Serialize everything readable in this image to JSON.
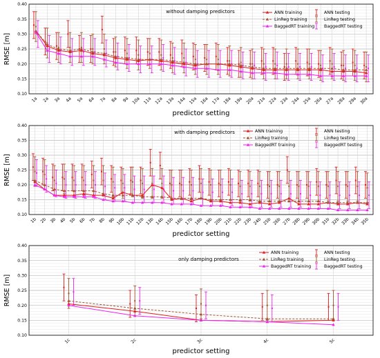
{
  "chart_data": [
    {
      "type": "line",
      "title": "without damping predictors",
      "xlabel": "predictor setting",
      "ylabel": "RMSE [m]",
      "ylim": [
        0.1,
        0.4
      ],
      "yticks": [
        "0.10",
        "0.15",
        "0.20",
        "0.25",
        "0.30",
        "0.35",
        "0.40"
      ],
      "grid": true,
      "legend_position": "top-right",
      "categories": [
        "1a",
        "2a",
        "3a",
        "4a",
        "5a",
        "6a",
        "7a",
        "8a",
        "9a",
        "10a",
        "11a",
        "12a",
        "13a",
        "14a",
        "15a",
        "16a",
        "17a",
        "18a",
        "19a",
        "20a",
        "21a",
        "22a",
        "23a",
        "24a",
        "25a",
        "26a",
        "27a",
        "28a",
        "29a",
        "30a"
      ],
      "series": [
        {
          "name": "ANN training",
          "color": "#e31a1c",
          "style": "solid",
          "marker": "triangle",
          "values": [
            0.31,
            0.26,
            0.245,
            0.24,
            0.245,
            0.235,
            0.23,
            0.22,
            0.215,
            0.21,
            0.215,
            0.21,
            0.205,
            0.2,
            0.195,
            0.2,
            0.2,
            0.195,
            0.19,
            0.185,
            0.18,
            0.18,
            0.18,
            0.18,
            0.18,
            0.18,
            0.175,
            0.175,
            0.175,
            0.17
          ]
        },
        {
          "name": "LinReg training",
          "color": "#a0522d",
          "style": "dashed",
          "marker": "triangle",
          "values": [
            0.31,
            0.265,
            0.25,
            0.245,
            0.25,
            0.24,
            0.235,
            0.225,
            0.22,
            0.215,
            0.215,
            0.215,
            0.21,
            0.205,
            0.2,
            0.2,
            0.2,
            0.2,
            0.195,
            0.19,
            0.185,
            0.185,
            0.185,
            0.185,
            0.185,
            0.185,
            0.185,
            0.18,
            0.18,
            0.18
          ]
        },
        {
          "name": "BaggedRT training",
          "color": "#ee22ee",
          "style": "solid",
          "marker": "triangle",
          "values": [
            0.305,
            0.245,
            0.235,
            0.225,
            0.225,
            0.225,
            0.215,
            0.205,
            0.2,
            0.2,
            0.2,
            0.2,
            0.195,
            0.19,
            0.185,
            0.185,
            0.18,
            0.18,
            0.175,
            0.17,
            0.17,
            0.17,
            0.165,
            0.165,
            0.165,
            0.16,
            0.16,
            0.16,
            0.16,
            0.16
          ]
        },
        {
          "name": "ANN testing",
          "color": "#e31a1c",
          "type": "errorbar",
          "values": [
            0.33,
            0.275,
            0.26,
            0.3,
            0.25,
            0.25,
            0.315,
            0.24,
            0.245,
            0.245,
            0.24,
            0.24,
            0.23,
            0.235,
            0.225,
            0.22,
            0.225,
            0.21,
            0.2,
            0.2,
            0.21,
            0.21,
            0.19,
            0.21,
            0.205,
            0.2,
            0.21,
            0.195,
            0.205,
            0.195
          ]
        },
        {
          "name": "LinReg testing",
          "color": "#a0522d",
          "type": "errorbar",
          "values": [
            0.325,
            0.27,
            0.255,
            0.255,
            0.255,
            0.25,
            0.25,
            0.24,
            0.235,
            0.23,
            0.235,
            0.23,
            0.22,
            0.22,
            0.215,
            0.215,
            0.215,
            0.21,
            0.205,
            0.2,
            0.2,
            0.2,
            0.2,
            0.2,
            0.2,
            0.195,
            0.2,
            0.195,
            0.195,
            0.19
          ]
        },
        {
          "name": "BaggedRT testing",
          "color": "#ee22ee",
          "type": "errorbar",
          "values": [
            0.3,
            0.25,
            0.245,
            0.24,
            0.24,
            0.24,
            0.235,
            0.225,
            0.22,
            0.215,
            0.215,
            0.22,
            0.21,
            0.205,
            0.2,
            0.2,
            0.2,
            0.2,
            0.195,
            0.195,
            0.19,
            0.195,
            0.19,
            0.19,
            0.19,
            0.185,
            0.19,
            0.185,
            0.185,
            0.185
          ]
        }
      ]
    },
    {
      "type": "line",
      "title": "with damping predictors",
      "xlabel": "predictor setting",
      "ylabel": "RMSE [m]",
      "ylim": [
        0.1,
        0.4
      ],
      "yticks": [
        "0.10",
        "0.15",
        "0.20",
        "0.25",
        "0.30",
        "0.35",
        "0.40"
      ],
      "grid": true,
      "legend_position": "top-right",
      "categories": [
        "1b",
        "2b",
        "3b",
        "4b",
        "5b",
        "6b",
        "7b",
        "8b",
        "9b",
        "10b",
        "11b",
        "12b",
        "13b",
        "14b",
        "15b",
        "16b",
        "17b",
        "18b",
        "19b",
        "20b",
        "21b",
        "22b",
        "23b",
        "24b",
        "25b",
        "26b",
        "27b",
        "28b",
        "29b",
        "30b",
        "31b",
        "32b",
        "33b",
        "34b",
        "35b"
      ],
      "series": [
        {
          "name": "ANN training",
          "color": "#e31a1c",
          "style": "solid",
          "marker": "triangle",
          "values": [
            0.21,
            0.185,
            0.165,
            0.165,
            0.165,
            0.17,
            0.165,
            0.165,
            0.155,
            0.175,
            0.165,
            0.165,
            0.2,
            0.19,
            0.15,
            0.155,
            0.145,
            0.155,
            0.145,
            0.145,
            0.14,
            0.14,
            0.135,
            0.14,
            0.135,
            0.14,
            0.155,
            0.135,
            0.135,
            0.135,
            0.14,
            0.135,
            0.135,
            0.14,
            0.135
          ]
        },
        {
          "name": "LinReg training",
          "color": "#a0522d",
          "style": "dashed",
          "marker": "triangle",
          "values": [
            0.215,
            0.2,
            0.185,
            0.18,
            0.18,
            0.18,
            0.18,
            0.17,
            0.165,
            0.165,
            0.165,
            0.16,
            0.16,
            0.16,
            0.155,
            0.155,
            0.155,
            0.155,
            0.15,
            0.15,
            0.15,
            0.15,
            0.15,
            0.145,
            0.145,
            0.145,
            0.145,
            0.145,
            0.145,
            0.145,
            0.14,
            0.14,
            0.14,
            0.14,
            0.14
          ]
        },
        {
          "name": "BaggedRT training",
          "color": "#ee22ee",
          "style": "solid",
          "marker": "triangle",
          "values": [
            0.2,
            0.185,
            0.165,
            0.16,
            0.16,
            0.16,
            0.16,
            0.15,
            0.145,
            0.145,
            0.14,
            0.14,
            0.14,
            0.14,
            0.135,
            0.135,
            0.135,
            0.13,
            0.13,
            0.13,
            0.125,
            0.125,
            0.125,
            0.12,
            0.12,
            0.12,
            0.12,
            0.12,
            0.12,
            0.12,
            0.12,
            0.115,
            0.115,
            0.115,
            0.115
          ]
        },
        {
          "name": "ANN testing",
          "color": "#e31a1c",
          "type": "errorbar",
          "values": [
            0.26,
            0.245,
            0.225,
            0.225,
            0.225,
            0.225,
            0.235,
            0.245,
            0.22,
            0.215,
            0.215,
            0.215,
            0.275,
            0.265,
            0.205,
            0.205,
            0.21,
            0.22,
            0.21,
            0.205,
            0.21,
            0.205,
            0.205,
            0.205,
            0.2,
            0.2,
            0.25,
            0.2,
            0.2,
            0.21,
            0.2,
            0.215,
            0.2,
            0.215,
            0.2
          ]
        },
        {
          "name": "LinReg testing",
          "color": "#a0522d",
          "type": "errorbar",
          "values": [
            0.245,
            0.235,
            0.215,
            0.22,
            0.215,
            0.215,
            0.215,
            0.215,
            0.21,
            0.205,
            0.21,
            0.205,
            0.205,
            0.205,
            0.2,
            0.2,
            0.2,
            0.205,
            0.2,
            0.2,
            0.2,
            0.195,
            0.195,
            0.195,
            0.195,
            0.195,
            0.195,
            0.195,
            0.195,
            0.195,
            0.195,
            0.195,
            0.195,
            0.195,
            0.19
          ]
        },
        {
          "name": "BaggedRT testing",
          "color": "#ee22ee",
          "type": "errorbar",
          "values": [
            0.24,
            0.22,
            0.205,
            0.2,
            0.2,
            0.2,
            0.2,
            0.195,
            0.19,
            0.19,
            0.185,
            0.185,
            0.185,
            0.185,
            0.18,
            0.18,
            0.18,
            0.175,
            0.175,
            0.175,
            0.175,
            0.17,
            0.17,
            0.17,
            0.17,
            0.17,
            0.17,
            0.17,
            0.165,
            0.165,
            0.165,
            0.165,
            0.165,
            0.165,
            0.165
          ]
        }
      ]
    },
    {
      "type": "line",
      "title": "only damping predictors",
      "xlabel": "predictor setting",
      "ylabel": "RMSE [m]",
      "ylim": [
        0.1,
        0.4
      ],
      "yticks": [
        "0.10",
        "0.15",
        "0.20",
        "0.25",
        "0.30",
        "0.35",
        "0.40"
      ],
      "grid": true,
      "legend_position": "top-right",
      "categories": [
        "1c",
        "2c",
        "3c",
        "4c",
        "5c"
      ],
      "series": [
        {
          "name": "ANN training",
          "color": "#e31a1c",
          "style": "solid",
          "marker": "triangle",
          "values": [
            0.205,
            0.18,
            0.15,
            0.145,
            0.15
          ]
        },
        {
          "name": "LinReg training",
          "color": "#a0522d",
          "style": "dashed",
          "marker": "triangle",
          "values": [
            0.215,
            0.19,
            0.17,
            0.155,
            0.155
          ]
        },
        {
          "name": "BaggedRT training",
          "color": "#ee22ee",
          "style": "solid",
          "marker": "triangle",
          "values": [
            0.2,
            0.165,
            0.15,
            0.145,
            0.135
          ]
        },
        {
          "name": "ANN testing",
          "color": "#e31a1c",
          "type": "errorbar",
          "values": [
            0.26,
            0.205,
            0.19,
            0.195,
            0.195
          ]
        },
        {
          "name": "LinReg testing",
          "color": "#a0522d",
          "type": "errorbar",
          "values": [
            0.24,
            0.215,
            0.205,
            0.2,
            0.2
          ]
        },
        {
          "name": "BaggedRT testing",
          "color": "#ee22ee",
          "type": "errorbar",
          "values": [
            0.245,
            0.215,
            0.2,
            0.19,
            0.195
          ]
        }
      ]
    }
  ]
}
